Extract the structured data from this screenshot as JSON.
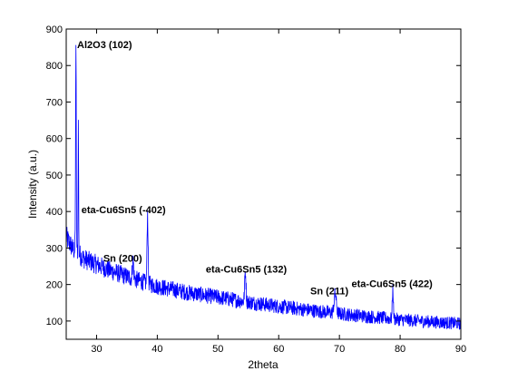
{
  "chart_data": {
    "type": "line",
    "title": "",
    "xlabel": "2theta",
    "ylabel": "Intensity (a.u.)",
    "xlim": [
      25,
      90
    ],
    "ylim": [
      50,
      900
    ],
    "xticks": [
      30,
      40,
      50,
      60,
      70,
      80,
      90
    ],
    "yticks": [
      100,
      200,
      300,
      400,
      500,
      600,
      700,
      800,
      900
    ],
    "grid": false,
    "legend": "none",
    "line_color": "#0000ff",
    "baseline": [
      [
        25,
        330
      ],
      [
        26,
        300
      ],
      [
        27,
        285
      ],
      [
        28,
        270
      ],
      [
        30,
        255
      ],
      [
        32,
        240
      ],
      [
        35,
        222
      ],
      [
        38,
        205
      ],
      [
        40,
        195
      ],
      [
        45,
        178
      ],
      [
        50,
        165
      ],
      [
        55,
        152
      ],
      [
        60,
        140
      ],
      [
        65,
        130
      ],
      [
        70,
        120
      ],
      [
        75,
        112
      ],
      [
        80,
        104
      ],
      [
        85,
        98
      ],
      [
        90,
        93
      ]
    ],
    "peaks": [
      {
        "x": 26.6,
        "y": 860,
        "width": 0.08
      },
      {
        "x": 27.0,
        "y": 640,
        "width": 0.06
      },
      {
        "x": 36.0,
        "y": 265,
        "width": 0.15
      },
      {
        "x": 38.4,
        "y": 395,
        "width": 0.12
      },
      {
        "x": 54.5,
        "y": 235,
        "width": 0.15
      },
      {
        "x": 69.3,
        "y": 175,
        "width": 0.25
      },
      {
        "x": 78.8,
        "y": 190,
        "width": 0.12
      }
    ],
    "annotations": [
      {
        "text": "Al2O3 (102)",
        "x": 26.8,
        "y": 858
      },
      {
        "text": "eta-Cu6Sn5 (-402)",
        "x": 27.5,
        "y": 405
      },
      {
        "text": "Sn (200)",
        "x": 31.1,
        "y": 273
      },
      {
        "text": "eta-Cu6Sn5 (132)",
        "x": 48.0,
        "y": 243
      },
      {
        "text": "Sn (211)",
        "x": 65.2,
        "y": 183
      },
      {
        "text": "eta-Cu6Sn5 (422)",
        "x": 72.0,
        "y": 203
      }
    ]
  }
}
